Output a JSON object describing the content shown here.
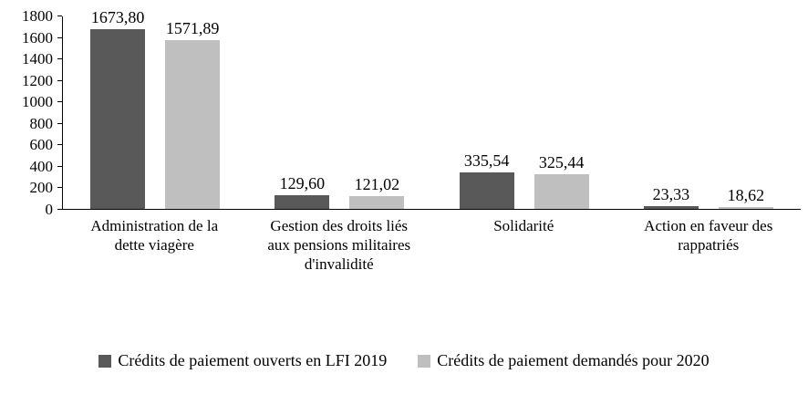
{
  "chart_data": {
    "type": "bar",
    "title": "",
    "xlabel": "",
    "ylabel": "",
    "categories": [
      "Administration de la dette viagère",
      "Gestion des droits liés aux pensions militaires d'invalidité",
      "Solidarité",
      "Action en faveur des rappatriés"
    ],
    "series": [
      {
        "name": "Crédits de paiement ouverts en LFI 2019",
        "color": "#595959",
        "values": [
          1673.8,
          129.6,
          335.54,
          23.33
        ],
        "labels": [
          "1673,80",
          "129,60",
          "335,54",
          "23,33"
        ]
      },
      {
        "name": "Crédits de paiement demandés pour 2020",
        "color": "#bfbfbf",
        "values": [
          1571.89,
          121.02,
          325.44,
          18.62
        ],
        "labels": [
          "1571,89",
          "121,02",
          "325,44",
          "18,62"
        ]
      }
    ],
    "ylim": [
      0,
      1800
    ],
    "ytick_step": 200,
    "yticks": [
      0,
      200,
      400,
      600,
      800,
      1000,
      1200,
      1400,
      1600,
      1800
    ],
    "grid": false,
    "legend_position": "bottom"
  }
}
